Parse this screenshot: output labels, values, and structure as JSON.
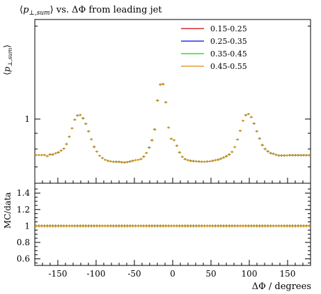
{
  "chart_data": {
    "type": "scatter",
    "title": "⟨p⊥,sum⟩ vs. ΔΦ from leading jet",
    "title_parts": {
      "open": "⟨",
      "p": "p",
      "sub": "⊥,sum",
      "close": "⟩",
      "rest": " vs. ΔΦ from leading jet"
    },
    "ylabel_parts": {
      "open": "⟨",
      "p": "p",
      "sub": "⊥,sum",
      "close": "⟩"
    },
    "xlabel": "ΔΦ / degrees",
    "ratio_ylabel": "MC/data",
    "xlim": [
      -180,
      180
    ],
    "x_ticks": [
      -150,
      -100,
      -50,
      0,
      50,
      100,
      150
    ],
    "x_tick_labels": [
      "-150",
      "-100",
      "-50",
      "0",
      "50",
      "100",
      "150"
    ],
    "main_yscale": "log",
    "main_ylim": [
      0.62,
      2.1
    ],
    "main_y_ticks": [
      1
    ],
    "main_y_tick_labels": [
      "1"
    ],
    "ratio_ylim": [
      0.52,
      1.52
    ],
    "ratio_y_ticks": [
      0.6,
      0.8,
      1.0,
      1.2,
      1.4
    ],
    "ratio_y_tick_labels": [
      "0.6",
      "0.8",
      "1",
      "1.2",
      "1.4"
    ],
    "legend_position": "top-right",
    "series": [
      {
        "name": "0.15-0.25",
        "color": "#cc0000"
      },
      {
        "name": "0.25-0.35",
        "color": "#0000ff"
      },
      {
        "name": "0.35-0.45",
        "color": "#00dd00"
      },
      {
        "name": "0.45-0.55",
        "color": "#e08800"
      }
    ],
    "bin_width": 3.6,
    "points": {
      "x": [
        -178.2,
        -174.6,
        -171,
        -167.4,
        -163.8,
        -160.2,
        -156.6,
        -153,
        -149.4,
        -145.8,
        -142.2,
        -138.6,
        -135,
        -131.4,
        -127.8,
        -124.2,
        -120.6,
        -117,
        -113.4,
        -109.8,
        -106.2,
        -102.6,
        -99,
        -95.4,
        -91.8,
        -88.2,
        -84.6,
        -81,
        -77.4,
        -73.8,
        -70.2,
        -66.6,
        -63,
        -59.4,
        -55.8,
        -52.2,
        -48.6,
        -45,
        -41.4,
        -37.8,
        -34.2,
        -30.6,
        -27,
        -23.4,
        -19.8,
        -16.2,
        -12.6,
        -9,
        -5.4,
        -1.8,
        1.8,
        5.4,
        9,
        12.6,
        16.2,
        19.8,
        23.4,
        27,
        30.6,
        34.2,
        37.8,
        41.4,
        45,
        48.6,
        52.2,
        55.8,
        59.4,
        63,
        66.6,
        70.2,
        73.8,
        77.4,
        81,
        84.6,
        88.2,
        91.8,
        95.4,
        99,
        102.6,
        106.2,
        109.8,
        113.4,
        117,
        120.6,
        124.2,
        127.8,
        131.4,
        135,
        138.6,
        142.2,
        145.8,
        149.4,
        153,
        156.6,
        160.2,
        163.8,
        167.4,
        171,
        174.6,
        178.2
      ],
      "y": [
        0.765,
        0.765,
        0.765,
        0.765,
        0.759,
        0.768,
        0.768,
        0.775,
        0.78,
        0.791,
        0.802,
        0.83,
        0.877,
        0.934,
        0.995,
        1.027,
        1.031,
        1.006,
        0.966,
        0.913,
        0.86,
        0.813,
        0.785,
        0.761,
        0.748,
        0.738,
        0.733,
        0.73,
        0.728,
        0.727,
        0.727,
        0.725,
        0.724,
        0.726,
        0.729,
        0.733,
        0.736,
        0.738,
        0.743,
        0.756,
        0.777,
        0.809,
        0.854,
        0.926,
        1.149,
        1.293,
        1.298,
        1.133,
        0.939,
        0.863,
        0.855,
        0.82,
        0.78,
        0.755,
        0.742,
        0.736,
        0.733,
        0.731,
        0.73,
        0.729,
        0.728,
        0.728,
        0.729,
        0.73,
        0.733,
        0.736,
        0.739,
        0.744,
        0.751,
        0.758,
        0.768,
        0.783,
        0.812,
        0.858,
        0.917,
        0.987,
        1.03,
        1.039,
        1.015,
        0.967,
        0.913,
        0.865,
        0.824,
        0.8,
        0.786,
        0.776,
        0.772,
        0.766,
        0.762,
        0.762,
        0.762,
        0.763,
        0.764,
        0.764,
        0.764,
        0.764,
        0.764,
        0.764,
        0.764,
        0.764
      ]
    },
    "ratio_values_all": 1.0
  }
}
